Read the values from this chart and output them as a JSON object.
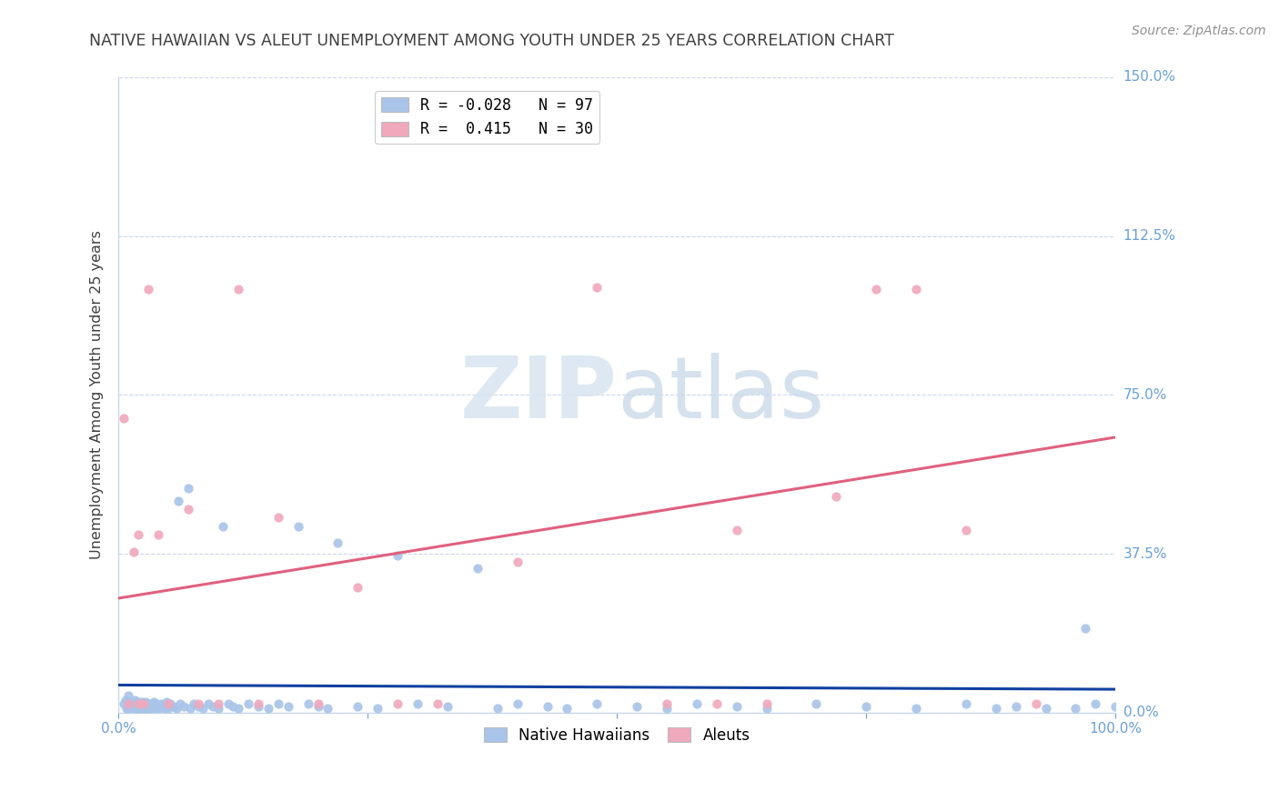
{
  "title": "NATIVE HAWAIIAN VS ALEUT UNEMPLOYMENT AMONG YOUTH UNDER 25 YEARS CORRELATION CHART",
  "source": "Source: ZipAtlas.com",
  "ylabel": "Unemployment Among Youth under 25 years",
  "xlim": [
    0.0,
    1.0
  ],
  "ylim": [
    0.0,
    1.5
  ],
  "yticks": [
    0.0,
    0.375,
    0.75,
    1.125,
    1.5
  ],
  "ytick_labels": [
    "0.0%",
    "37.5%",
    "75.0%",
    "112.5%",
    "150.0%"
  ],
  "watermark_zip": "ZIP",
  "watermark_atlas": "atlas",
  "legend_blue_R": "-0.028",
  "legend_blue_N": "97",
  "legend_pink_R": "0.415",
  "legend_pink_N": "30",
  "blue_color": "#A8C4E8",
  "pink_color": "#F0A8BC",
  "blue_line_color": "#1040A0",
  "pink_line_color": "#E06080",
  "axis_color": "#6AA0D8",
  "grid_color": "#C8D8EC",
  "title_color": "#404040",
  "ylabel_color": "#404040",
  "source_color": "#909090",
  "blue_line_y0": 0.065,
  "blue_line_y1": 0.055,
  "pink_line_y0": 0.27,
  "pink_line_y1": 0.65,
  "nh_x": [
    0.005,
    0.007,
    0.008,
    0.01,
    0.01,
    0.012,
    0.013,
    0.015,
    0.015,
    0.016,
    0.018,
    0.018,
    0.019,
    0.02,
    0.02,
    0.02,
    0.021,
    0.022,
    0.022,
    0.023,
    0.024,
    0.025,
    0.025,
    0.026,
    0.027,
    0.028,
    0.029,
    0.03,
    0.031,
    0.032,
    0.033,
    0.034,
    0.035,
    0.036,
    0.038,
    0.04,
    0.041,
    0.043,
    0.045,
    0.046,
    0.048,
    0.05,
    0.052,
    0.055,
    0.058,
    0.06,
    0.062,
    0.065,
    0.07,
    0.072,
    0.075,
    0.08,
    0.085,
    0.09,
    0.095,
    0.1,
    0.105,
    0.11,
    0.115,
    0.12,
    0.13,
    0.14,
    0.15,
    0.16,
    0.17,
    0.18,
    0.19,
    0.2,
    0.21,
    0.22,
    0.24,
    0.26,
    0.28,
    0.3,
    0.33,
    0.36,
    0.38,
    0.4,
    0.43,
    0.45,
    0.48,
    0.52,
    0.55,
    0.58,
    0.62,
    0.65,
    0.7,
    0.75,
    0.8,
    0.85,
    0.88,
    0.9,
    0.93,
    0.96,
    0.97,
    0.98,
    1.0
  ],
  "nh_y": [
    0.02,
    0.03,
    0.01,
    0.04,
    0.01,
    0.02,
    0.015,
    0.02,
    0.01,
    0.03,
    0.01,
    0.02,
    0.01,
    0.025,
    0.01,
    0.02,
    0.015,
    0.02,
    0.01,
    0.025,
    0.01,
    0.02,
    0.015,
    0.01,
    0.025,
    0.01,
    0.02,
    0.01,
    0.02,
    0.015,
    0.01,
    0.02,
    0.025,
    0.01,
    0.02,
    0.015,
    0.01,
    0.02,
    0.015,
    0.01,
    0.025,
    0.01,
    0.02,
    0.015,
    0.01,
    0.5,
    0.02,
    0.015,
    0.53,
    0.01,
    0.02,
    0.015,
    0.01,
    0.02,
    0.015,
    0.01,
    0.44,
    0.02,
    0.015,
    0.01,
    0.02,
    0.015,
    0.01,
    0.02,
    0.015,
    0.44,
    0.02,
    0.015,
    0.01,
    0.4,
    0.015,
    0.01,
    0.37,
    0.02,
    0.015,
    0.34,
    0.01,
    0.02,
    0.015,
    0.01,
    0.02,
    0.015,
    0.01,
    0.02,
    0.015,
    0.01,
    0.02,
    0.015,
    0.01,
    0.02,
    0.01,
    0.015,
    0.01,
    0.01,
    0.2,
    0.02,
    0.015
  ],
  "al_x": [
    0.005,
    0.01,
    0.015,
    0.02,
    0.02,
    0.025,
    0.03,
    0.04,
    0.05,
    0.07,
    0.08,
    0.1,
    0.12,
    0.14,
    0.16,
    0.2,
    0.24,
    0.28,
    0.32,
    0.4,
    0.48,
    0.55,
    0.6,
    0.62,
    0.65,
    0.72,
    0.76,
    0.8,
    0.85,
    0.92
  ],
  "al_y": [
    0.695,
    0.02,
    0.38,
    0.42,
    0.02,
    0.02,
    1.0,
    0.42,
    0.02,
    0.48,
    0.02,
    0.02,
    1.0,
    0.02,
    0.46,
    0.02,
    0.295,
    0.02,
    0.02,
    0.355,
    1.005,
    0.02,
    0.02,
    0.43,
    0.02,
    0.51,
    1.0,
    1.0,
    0.43,
    0.02
  ]
}
